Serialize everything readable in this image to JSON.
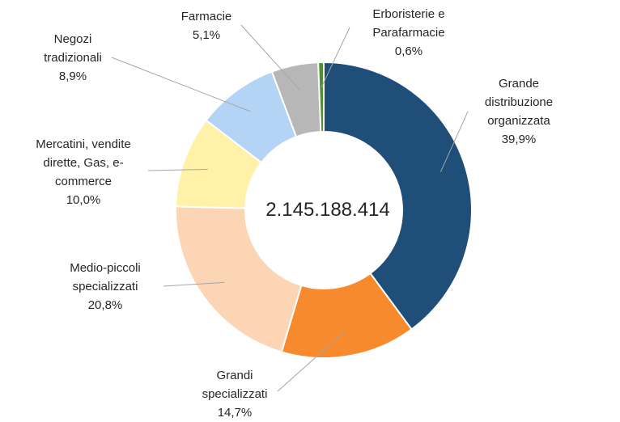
{
  "chart_data": {
    "type": "pie",
    "variant": "donut",
    "center_label": "2.145.188.414",
    "slices": [
      {
        "label_lines": [
          "Grande",
          "distribuzione",
          "organizzata"
        ],
        "percent_text": "39,9%",
        "value": 39.9,
        "color": "#1f4e79"
      },
      {
        "label_lines": [
          "Grandi",
          "specializzati"
        ],
        "percent_text": "14,7%",
        "value": 14.7,
        "color": "#f78a2c"
      },
      {
        "label_lines": [
          "Medio-piccoli",
          "specializzati"
        ],
        "percent_text": "20,8%",
        "value": 20.8,
        "color": "#fcd5b4"
      },
      {
        "label_lines": [
          "Mercatini, vendite",
          "dirette, Gas, e-",
          "commerce"
        ],
        "percent_text": "10,0%",
        "value": 10.0,
        "color": "#fff2a8"
      },
      {
        "label_lines": [
          "Negozi",
          "tradizionali"
        ],
        "percent_text": "8,9%",
        "value": 8.9,
        "color": "#b3d4f5"
      },
      {
        "label_lines": [
          "Farmacie"
        ],
        "percent_text": "5,1%",
        "value": 5.1,
        "color": "#b7b7b7"
      },
      {
        "label_lines": [
          "Erboristerie e",
          "Parafarmacie"
        ],
        "percent_text": "0,6%",
        "value": 0.6,
        "color": "#4e8f2f"
      }
    ]
  }
}
